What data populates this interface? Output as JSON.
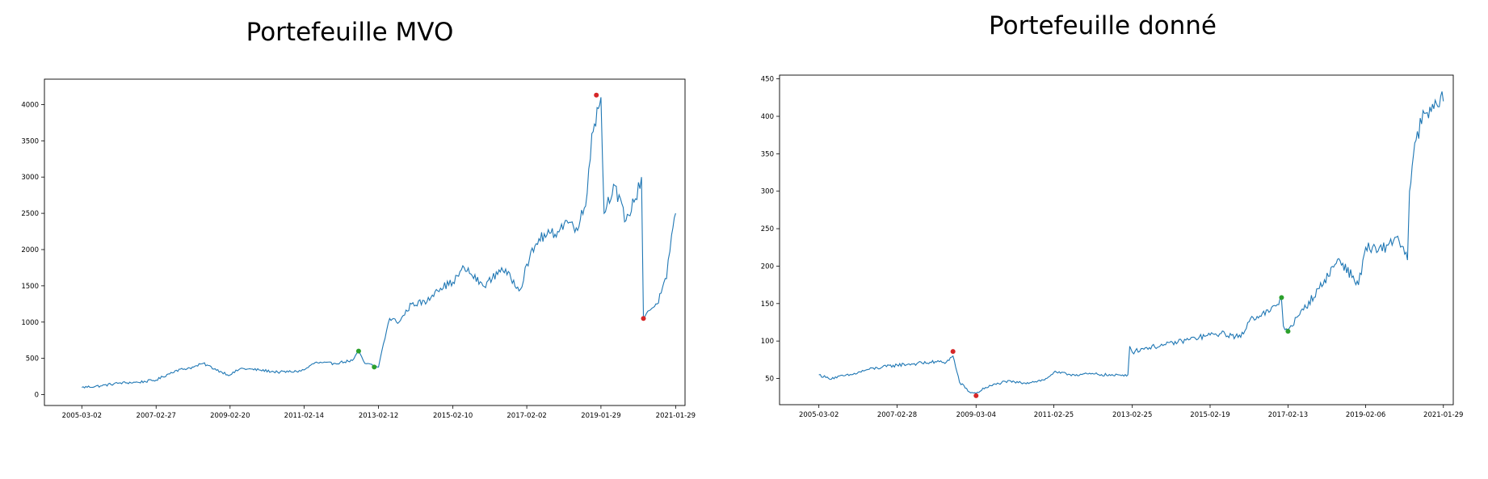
{
  "chart_data": [
    {
      "type": "line",
      "title": "Portefeuille MVO",
      "xlabel": "",
      "ylabel": "",
      "x_tick_labels": [
        "2005-03-02",
        "2007-02-27",
        "2009-02-20",
        "2011-02-14",
        "2013-02-12",
        "2015-02-10",
        "2017-02-02",
        "2019-01-29",
        "2021-01-29"
      ],
      "y_ticks": [
        0,
        500,
        1000,
        1500,
        2000,
        2500,
        3000,
        3500,
        4000
      ],
      "xlim": [
        "2004-03-01",
        "2021-05-01"
      ],
      "ylim": [
        -150,
        4350
      ],
      "grid": false,
      "line_color": "#1f77b4",
      "series": [
        {
          "x": [
            "2005-03-02",
            "2005-09-01",
            "2006-03-01",
            "2006-09-01",
            "2007-02-27",
            "2007-09-01",
            "2008-03-01",
            "2008-06-01",
            "2008-12-01",
            "2009-02-20",
            "2009-06-01",
            "2009-12-01",
            "2010-06-01",
            "2010-12-01",
            "2011-02-14",
            "2011-06-01",
            "2011-12-01",
            "2012-06-01",
            "2012-08-01",
            "2012-10-01",
            "2013-01-01",
            "2013-02-12",
            "2013-04-01",
            "2013-06-01",
            "2013-09-01",
            "2014-01-01",
            "2014-06-01",
            "2014-09-01",
            "2015-02-10",
            "2015-06-01",
            "2015-12-01",
            "2016-03-01",
            "2016-06-01",
            "2016-12-01",
            "2017-02-02",
            "2017-06-01",
            "2017-12-01",
            "2018-03-01",
            "2018-06-01",
            "2018-09-01",
            "2018-11-01",
            "2019-01-29",
            "2019-03-01",
            "2019-06-01",
            "2019-10-01",
            "2020-01-01",
            "2020-03-01",
            "2020-03-20",
            "2020-05-01",
            "2020-08-01",
            "2020-11-01",
            "2020-12-20",
            "2021-01-29"
          ],
          "y": [
            100,
            120,
            160,
            170,
            200,
            330,
            380,
            430,
            310,
            270,
            360,
            340,
            310,
            320,
            340,
            440,
            430,
            470,
            590,
            430,
            400,
            380,
            700,
            1050,
            1000,
            1250,
            1280,
            1450,
            1550,
            1750,
            1500,
            1600,
            1750,
            1450,
            1800,
            2150,
            2250,
            2400,
            2300,
            2600,
            3600,
            4100,
            2500,
            2900,
            2400,
            2700,
            3000,
            1050,
            1150,
            1250,
            1600,
            2200,
            2500
          ]
        }
      ],
      "markers": [
        {
          "x": "2018-12-15",
          "y": 4130,
          "color": "#d62728"
        },
        {
          "x": "2020-03-20",
          "y": 1050,
          "color": "#d62728"
        },
        {
          "x": "2012-08-01",
          "y": 600,
          "color": "#2ca02c"
        },
        {
          "x": "2013-01-01",
          "y": 380,
          "color": "#2ca02c"
        }
      ]
    },
    {
      "type": "line",
      "title": "Portefeuille donné",
      "xlabel": "",
      "ylabel": "",
      "x_tick_labels": [
        "2005-03-02",
        "2007-02-28",
        "2009-03-04",
        "2011-02-25",
        "2013-02-25",
        "2015-02-19",
        "2017-02-13",
        "2019-02-06",
        "2021-01-29"
      ],
      "y_ticks": [
        50,
        100,
        150,
        200,
        250,
        300,
        350,
        400,
        450
      ],
      "xlim": [
        "2004-03-01",
        "2021-05-01"
      ],
      "ylim": [
        15,
        455
      ],
      "grid": false,
      "line_color": "#1f77b4",
      "series": [
        {
          "x": [
            "2005-03-02",
            "2005-06-01",
            "2006-01-01",
            "2006-06-01",
            "2007-02-28",
            "2007-09-01",
            "2008-03-01",
            "2008-06-01",
            "2008-08-01",
            "2008-10-01",
            "2009-01-01",
            "2009-03-04",
            "2009-06-01",
            "2009-12-01",
            "2010-06-01",
            "2010-12-01",
            "2011-02-25",
            "2011-09-01",
            "2012-03-01",
            "2012-09-01",
            "2013-01-15",
            "2013-02-01",
            "2013-02-25",
            "2013-06-01",
            "2014-01-01",
            "2014-06-01",
            "2015-02-19",
            "2015-06-01",
            "2015-12-01",
            "2016-03-01",
            "2016-09-01",
            "2016-12-15",
            "2017-01-01",
            "2017-02-13",
            "2017-06-01",
            "2017-12-01",
            "2018-06-01",
            "2018-12-01",
            "2019-02-06",
            "2019-06-01",
            "2019-09-01",
            "2019-12-01",
            "2020-03-01",
            "2020-03-20",
            "2020-06-01",
            "2020-09-01",
            "2020-11-01",
            "2021-01-29"
          ],
          "y": [
            55,
            50,
            55,
            62,
            68,
            70,
            72,
            72,
            80,
            45,
            32,
            30,
            38,
            46,
            44,
            48,
            58,
            55,
            56,
            54,
            55,
            93,
            85,
            90,
            95,
            100,
            108,
            110,
            105,
            130,
            140,
            155,
            120,
            115,
            135,
            170,
            210,
            175,
            225,
            220,
            228,
            240,
            208,
            300,
            380,
            405,
            410,
            420
          ]
        }
      ],
      "markers": [
        {
          "x": "2008-08-01",
          "y": 86,
          "color": "#d62728"
        },
        {
          "x": "2009-03-04",
          "y": 27,
          "color": "#d62728"
        },
        {
          "x": "2016-12-15",
          "y": 158,
          "color": "#2ca02c"
        },
        {
          "x": "2017-02-13",
          "y": 113,
          "color": "#2ca02c"
        }
      ]
    }
  ]
}
